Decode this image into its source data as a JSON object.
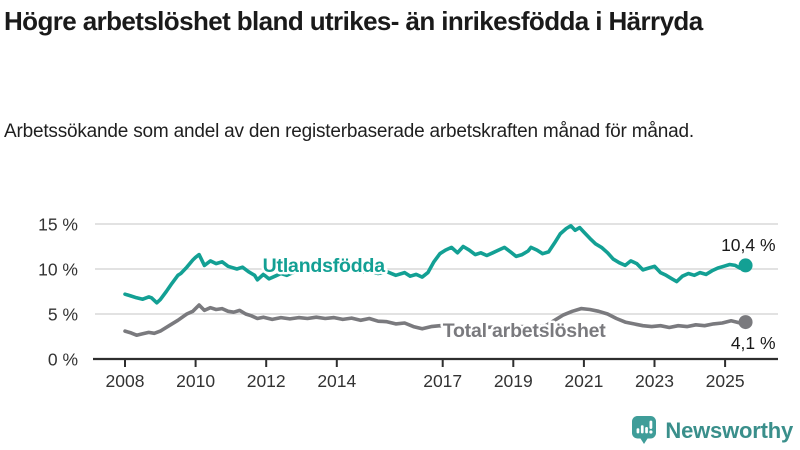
{
  "header": {
    "title": "Högre arbetslöshet bland utrikes- än inrikesfödda i Härryda",
    "subtitle": "Arbetssökande som andel av den registerbaserade arbetskraften månad för månad."
  },
  "chart_data": {
    "type": "line",
    "title": "Högre arbetslöshet bland utrikes- än inrikesfödda i Härryda",
    "xlabel": "",
    "ylabel": "",
    "y_unit": "%",
    "ylim": [
      0,
      16.5
    ],
    "x_range": [
      2008.0,
      2025.58
    ],
    "grid": true,
    "axis_color": "#2e2e2e",
    "grid_color": "#d9d9d9",
    "tick_label_color": "#333333",
    "y_ticks": [
      {
        "value": 0,
        "label": "0 %"
      },
      {
        "value": 5,
        "label": "5 %"
      },
      {
        "value": 10,
        "label": "10 %"
      },
      {
        "value": 15,
        "label": "15 %"
      }
    ],
    "x_ticks": [
      {
        "value": 2008,
        "label": "2008"
      },
      {
        "value": 2010,
        "label": "2010"
      },
      {
        "value": 2012,
        "label": "2012"
      },
      {
        "value": 2014,
        "label": "2014"
      },
      {
        "value": 2017,
        "label": "2017"
      },
      {
        "value": 2019,
        "label": "2019"
      },
      {
        "value": 2021,
        "label": "2021"
      },
      {
        "value": 2023,
        "label": "2023"
      },
      {
        "value": 2025,
        "label": "2025"
      }
    ],
    "series": [
      {
        "name": "Total arbetslöshet",
        "color": "#7a7a7e",
        "end_label": "4,1 %",
        "end_label_position": "below",
        "label_anchor": {
          "year": 2017.0,
          "value": 2.45
        },
        "points": [
          [
            2008.0,
            3.1
          ],
          [
            2008.17,
            2.9
          ],
          [
            2008.33,
            2.65
          ],
          [
            2008.5,
            2.8
          ],
          [
            2008.67,
            2.95
          ],
          [
            2008.83,
            2.85
          ],
          [
            2009.0,
            3.1
          ],
          [
            2009.25,
            3.7
          ],
          [
            2009.5,
            4.3
          ],
          [
            2009.75,
            5.0
          ],
          [
            2009.92,
            5.3
          ],
          [
            2010.1,
            6.0
          ],
          [
            2010.25,
            5.4
          ],
          [
            2010.42,
            5.7
          ],
          [
            2010.58,
            5.5
          ],
          [
            2010.75,
            5.6
          ],
          [
            2010.92,
            5.3
          ],
          [
            2011.08,
            5.2
          ],
          [
            2011.25,
            5.4
          ],
          [
            2011.42,
            5.0
          ],
          [
            2011.58,
            4.8
          ],
          [
            2011.75,
            4.5
          ],
          [
            2011.92,
            4.65
          ],
          [
            2012.17,
            4.4
          ],
          [
            2012.42,
            4.6
          ],
          [
            2012.67,
            4.45
          ],
          [
            2012.92,
            4.6
          ],
          [
            2013.17,
            4.5
          ],
          [
            2013.42,
            4.65
          ],
          [
            2013.67,
            4.5
          ],
          [
            2013.92,
            4.6
          ],
          [
            2014.17,
            4.4
          ],
          [
            2014.42,
            4.55
          ],
          [
            2014.67,
            4.3
          ],
          [
            2014.92,
            4.5
          ],
          [
            2015.17,
            4.2
          ],
          [
            2015.42,
            4.15
          ],
          [
            2015.67,
            3.9
          ],
          [
            2015.92,
            4.0
          ],
          [
            2016.17,
            3.6
          ],
          [
            2016.42,
            3.35
          ],
          [
            2016.67,
            3.6
          ],
          [
            2016.92,
            3.7
          ],
          [
            2017.25,
            3.6
          ],
          [
            2017.58,
            3.5
          ],
          [
            2017.92,
            3.6
          ],
          [
            2018.25,
            3.5
          ],
          [
            2018.58,
            3.6
          ],
          [
            2018.92,
            3.5
          ],
          [
            2019.25,
            3.6
          ],
          [
            2019.58,
            3.5
          ],
          [
            2019.92,
            3.7
          ],
          [
            2020.17,
            4.3
          ],
          [
            2020.42,
            4.9
          ],
          [
            2020.67,
            5.3
          ],
          [
            2020.92,
            5.6
          ],
          [
            2021.17,
            5.5
          ],
          [
            2021.42,
            5.3
          ],
          [
            2021.67,
            5.0
          ],
          [
            2021.92,
            4.5
          ],
          [
            2022.17,
            4.1
          ],
          [
            2022.42,
            3.9
          ],
          [
            2022.67,
            3.7
          ],
          [
            2022.92,
            3.6
          ],
          [
            2023.17,
            3.7
          ],
          [
            2023.42,
            3.5
          ],
          [
            2023.67,
            3.7
          ],
          [
            2023.92,
            3.6
          ],
          [
            2024.17,
            3.8
          ],
          [
            2024.42,
            3.7
          ],
          [
            2024.67,
            3.9
          ],
          [
            2024.92,
            4.0
          ],
          [
            2025.17,
            4.25
          ],
          [
            2025.33,
            4.1
          ],
          [
            2025.46,
            3.95
          ],
          [
            2025.58,
            4.1
          ]
        ]
      },
      {
        "name": "Utlandsfödda",
        "color": "#13a094",
        "end_label": "10,4 %",
        "end_label_position": "above",
        "label_anchor": {
          "year": 2011.9,
          "value": 9.65
        },
        "points": [
          [
            2008.0,
            7.2
          ],
          [
            2008.17,
            7.0
          ],
          [
            2008.33,
            6.8
          ],
          [
            2008.5,
            6.65
          ],
          [
            2008.67,
            6.9
          ],
          [
            2008.75,
            6.8
          ],
          [
            2008.9,
            6.25
          ],
          [
            2009.0,
            6.6
          ],
          [
            2009.17,
            7.5
          ],
          [
            2009.33,
            8.4
          ],
          [
            2009.5,
            9.3
          ],
          [
            2009.58,
            9.5
          ],
          [
            2009.75,
            10.2
          ],
          [
            2009.92,
            11.0
          ],
          [
            2010.0,
            11.3
          ],
          [
            2010.1,
            11.6
          ],
          [
            2010.25,
            10.4
          ],
          [
            2010.42,
            10.9
          ],
          [
            2010.58,
            10.6
          ],
          [
            2010.75,
            10.8
          ],
          [
            2010.92,
            10.3
          ],
          [
            2011.0,
            10.2
          ],
          [
            2011.17,
            10.0
          ],
          [
            2011.33,
            10.2
          ],
          [
            2011.5,
            9.7
          ],
          [
            2011.67,
            9.3
          ],
          [
            2011.75,
            8.8
          ],
          [
            2011.92,
            9.4
          ],
          [
            2012.08,
            8.9
          ],
          [
            2012.25,
            9.2
          ],
          [
            2012.42,
            9.5
          ],
          [
            2012.58,
            9.3
          ],
          [
            2012.75,
            9.6
          ],
          [
            2012.92,
            9.8
          ],
          [
            2013.17,
            9.7
          ],
          [
            2013.42,
            9.9
          ],
          [
            2013.67,
            9.8
          ],
          [
            2013.92,
            10.0
          ],
          [
            2014.17,
            9.8
          ],
          [
            2014.42,
            9.9
          ],
          [
            2014.67,
            9.6
          ],
          [
            2014.92,
            9.8
          ],
          [
            2015.17,
            9.5
          ],
          [
            2015.42,
            9.7
          ],
          [
            2015.67,
            9.3
          ],
          [
            2015.92,
            9.6
          ],
          [
            2016.08,
            9.2
          ],
          [
            2016.25,
            9.4
          ],
          [
            2016.42,
            9.1
          ],
          [
            2016.58,
            9.6
          ],
          [
            2016.75,
            10.8
          ],
          [
            2016.92,
            11.7
          ],
          [
            2017.08,
            12.1
          ],
          [
            2017.25,
            12.4
          ],
          [
            2017.42,
            11.8
          ],
          [
            2017.58,
            12.5
          ],
          [
            2017.75,
            12.1
          ],
          [
            2017.92,
            11.6
          ],
          [
            2018.08,
            11.8
          ],
          [
            2018.25,
            11.5
          ],
          [
            2018.42,
            11.8
          ],
          [
            2018.58,
            12.1
          ],
          [
            2018.75,
            12.4
          ],
          [
            2018.92,
            11.9
          ],
          [
            2019.08,
            11.4
          ],
          [
            2019.25,
            11.6
          ],
          [
            2019.42,
            12.0
          ],
          [
            2019.5,
            12.4
          ],
          [
            2019.67,
            12.1
          ],
          [
            2019.83,
            11.7
          ],
          [
            2020.0,
            11.9
          ],
          [
            2020.17,
            12.9
          ],
          [
            2020.33,
            13.9
          ],
          [
            2020.5,
            14.5
          ],
          [
            2020.63,
            14.8
          ],
          [
            2020.75,
            14.3
          ],
          [
            2020.88,
            14.6
          ],
          [
            2021.0,
            14.1
          ],
          [
            2021.17,
            13.4
          ],
          [
            2021.33,
            12.8
          ],
          [
            2021.5,
            12.4
          ],
          [
            2021.67,
            11.8
          ],
          [
            2021.83,
            11.1
          ],
          [
            2022.0,
            10.7
          ],
          [
            2022.17,
            10.4
          ],
          [
            2022.33,
            10.9
          ],
          [
            2022.5,
            10.6
          ],
          [
            2022.67,
            9.9
          ],
          [
            2022.83,
            10.1
          ],
          [
            2023.0,
            10.3
          ],
          [
            2023.17,
            9.6
          ],
          [
            2023.33,
            9.3
          ],
          [
            2023.5,
            8.9
          ],
          [
            2023.63,
            8.6
          ],
          [
            2023.79,
            9.2
          ],
          [
            2023.96,
            9.5
          ],
          [
            2024.13,
            9.3
          ],
          [
            2024.29,
            9.6
          ],
          [
            2024.46,
            9.4
          ],
          [
            2024.63,
            9.8
          ],
          [
            2024.79,
            10.1
          ],
          [
            2024.96,
            10.3
          ],
          [
            2025.13,
            10.5
          ],
          [
            2025.29,
            10.4
          ],
          [
            2025.42,
            10.1
          ],
          [
            2025.58,
            10.4
          ]
        ]
      }
    ]
  },
  "footer": {
    "brand": "Newsworthy",
    "logo_color": "#3f9d99",
    "logo_text_color": "#3a8f8b"
  }
}
